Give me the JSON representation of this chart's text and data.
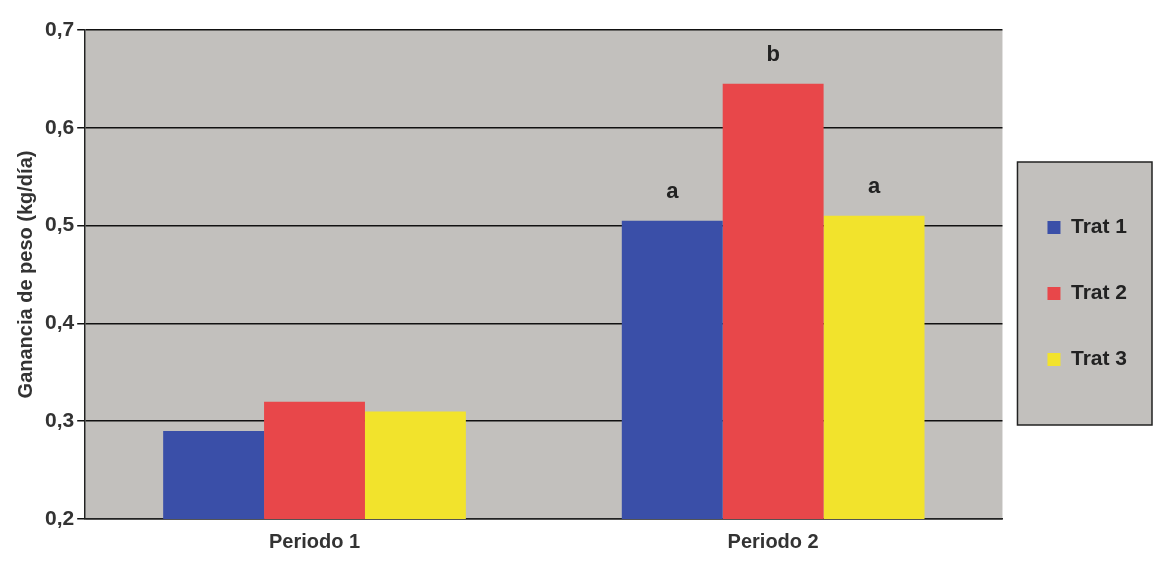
{
  "chart_data": {
    "type": "bar",
    "ylabel": "Ganancia de peso (kg/día)",
    "categories": [
      "Periodo 1",
      "Periodo 2"
    ],
    "series": [
      {
        "name": "Trat 1",
        "color": "#3a4fa8",
        "values": [
          0.29,
          0.505
        ]
      },
      {
        "name": "Trat 2",
        "color": "#e8474a",
        "values": [
          0.32,
          0.645
        ]
      },
      {
        "name": "Trat 3",
        "color": "#f2e32c",
        "values": [
          0.31,
          0.51
        ]
      }
    ],
    "ylim": [
      0.2,
      0.7
    ],
    "yticks": [
      {
        "value": 0.2,
        "label": "0,2"
      },
      {
        "value": 0.3,
        "label": "0,3"
      },
      {
        "value": 0.4,
        "label": "0,4"
      },
      {
        "value": 0.5,
        "label": "0,5"
      },
      {
        "value": 0.6,
        "label": "0,6"
      },
      {
        "value": 0.7,
        "label": "0,7"
      }
    ],
    "grid": "y",
    "legend": "right",
    "annotations": [
      "a",
      "b",
      "a"
    ]
  }
}
